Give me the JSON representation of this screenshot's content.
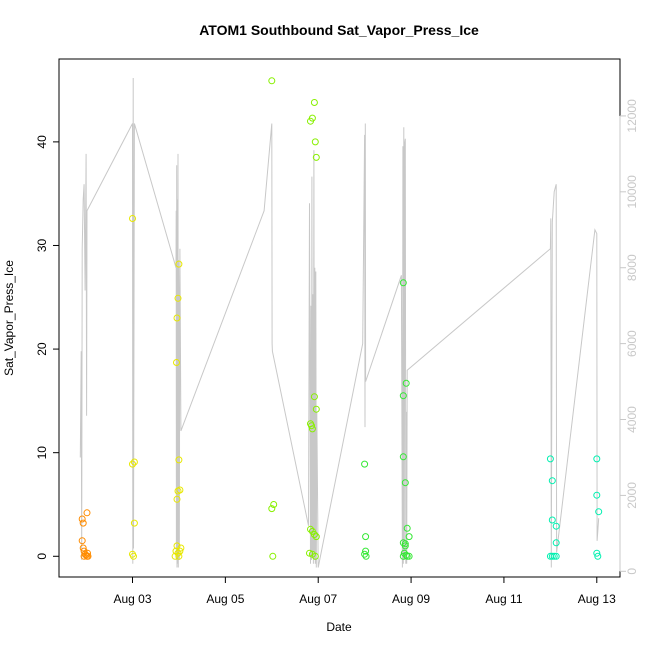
{
  "chart_data": {
    "type": "scatter",
    "title": "ATOM1 Southbound Sat_Vapor_Press_Ice",
    "xlabel": "Date",
    "ylabel": "Sat_Vapor_Press_Ice",
    "x_range": [
      "2016-08-01T10:00",
      "2016-08-13T12:00"
    ],
    "ylim": [
      -2,
      48
    ],
    "y2lim": [
      -150,
      13500
    ],
    "x_ticks": [
      {
        "date": "2016-08-03",
        "label": "Aug 03"
      },
      {
        "date": "2016-08-05",
        "label": "Aug 05"
      },
      {
        "date": "2016-08-07",
        "label": "Aug 07"
      },
      {
        "date": "2016-08-09",
        "label": "Aug 09"
      },
      {
        "date": "2016-08-11",
        "label": "Aug 11"
      },
      {
        "date": "2016-08-13",
        "label": "Aug 13"
      }
    ],
    "y_ticks": [
      0,
      10,
      20,
      30,
      40
    ],
    "y2_ticks": [
      0,
      2000,
      4000,
      6000,
      8000,
      10000,
      12000
    ],
    "line_color": "#c8c8c8",
    "series": [
      {
        "color": "#ff8c00",
        "points": [
          [
            "2016-08-01T22:00",
            3.6
          ],
          [
            "2016-08-01T22:30",
            3.2
          ],
          [
            "2016-08-01T22:00",
            1.5
          ],
          [
            "2016-08-01T22:30",
            0.8
          ],
          [
            "2016-08-01T23:00",
            0.5
          ],
          [
            "2016-08-01T23:30",
            0.2
          ],
          [
            "2016-08-02T00:00",
            0.1
          ],
          [
            "2016-08-02T00:30",
            0.0
          ],
          [
            "2016-08-01T23:00",
            0.0
          ],
          [
            "2016-08-02T00:45",
            0.3
          ],
          [
            "2016-08-02T01:00",
            0.0
          ],
          [
            "2016-08-02T00:30",
            4.2
          ]
        ]
      },
      {
        "color": "#e8e800",
        "points": [
          [
            "2016-08-03T00:00",
            32.6
          ],
          [
            "2016-08-03T00:00",
            8.9
          ],
          [
            "2016-08-03T01:00",
            9.1
          ],
          [
            "2016-08-03T01:00",
            3.2
          ],
          [
            "2016-08-03T00:00",
            0.2
          ],
          [
            "2016-08-03T00:30",
            0.0
          ],
          [
            "2016-08-03T23:00",
            5.5
          ],
          [
            "2016-08-03T22:30",
            0.5
          ],
          [
            "2016-08-03T22:00",
            0.0
          ],
          [
            "2016-08-03T23:30",
            0.3
          ],
          [
            "2016-08-04T00:00",
            0.0
          ],
          [
            "2016-08-04T00:30",
            0.5
          ],
          [
            "2016-08-04T01:00",
            0.8
          ],
          [
            "2016-08-03T23:00",
            1.0
          ],
          [
            "2016-08-04T00:00",
            28.2
          ],
          [
            "2016-08-03T23:30",
            24.9
          ],
          [
            "2016-08-03T23:00",
            23.0
          ],
          [
            "2016-08-03T22:45",
            18.7
          ],
          [
            "2016-08-04T00:00",
            9.3
          ],
          [
            "2016-08-03T23:30",
            6.3
          ],
          [
            "2016-08-04T00:30",
            6.4
          ]
        ]
      },
      {
        "color": "#88f000",
        "points": [
          [
            "2016-08-06T00:00",
            45.9
          ],
          [
            "2016-08-06T00:00",
            4.6
          ],
          [
            "2016-08-06T01:00",
            5.0
          ],
          [
            "2016-08-06T00:30",
            0.0
          ],
          [
            "2016-08-06T20:00",
            42.0
          ],
          [
            "2016-08-06T21:00",
            42.3
          ],
          [
            "2016-08-06T22:00",
            43.8
          ],
          [
            "2016-08-06T22:30",
            40.0
          ],
          [
            "2016-08-06T23:00",
            38.5
          ],
          [
            "2016-08-06T22:00",
            15.4
          ],
          [
            "2016-08-06T23:00",
            14.2
          ],
          [
            "2016-08-06T20:00",
            12.8
          ],
          [
            "2016-08-06T21:00",
            12.3
          ],
          [
            "2016-08-06T20:30",
            12.6
          ],
          [
            "2016-08-06T20:00",
            2.6
          ],
          [
            "2016-08-06T21:00",
            2.4
          ],
          [
            "2016-08-06T22:00",
            2.1
          ],
          [
            "2016-08-06T23:00",
            1.9
          ],
          [
            "2016-08-06T19:30",
            0.3
          ],
          [
            "2016-08-06T21:00",
            0.2
          ],
          [
            "2016-08-06T22:30",
            0.0
          ]
        ]
      },
      {
        "color": "#33e833",
        "points": [
          [
            "2016-08-08T00:00",
            8.9
          ],
          [
            "2016-08-08T00:30",
            1.9
          ],
          [
            "2016-08-08T00:30",
            0.5
          ],
          [
            "2016-08-08T00:00",
            0.2
          ],
          [
            "2016-08-08T00:45",
            0.0
          ],
          [
            "2016-08-08T20:00",
            26.4
          ],
          [
            "2016-08-08T20:00",
            15.5
          ],
          [
            "2016-08-08T21:30",
            16.7
          ],
          [
            "2016-08-08T20:00",
            9.6
          ],
          [
            "2016-08-08T21:00",
            7.1
          ],
          [
            "2016-08-08T22:00",
            2.7
          ],
          [
            "2016-08-08T23:00",
            1.9
          ],
          [
            "2016-08-08T20:00",
            1.3
          ],
          [
            "2016-08-08T21:00",
            1.0
          ],
          [
            "2016-08-08T20:30",
            0.3
          ],
          [
            "2016-08-08T21:30",
            0.1
          ],
          [
            "2016-08-08T22:00",
            0.0
          ],
          [
            "2016-08-08T23:00",
            0.0
          ],
          [
            "2016-08-08T20:00",
            0.0
          ],
          [
            "2016-08-08T21:00",
            1.2
          ]
        ]
      },
      {
        "color": "#00f0b0",
        "points": [
          [
            "2016-08-12T00:00",
            9.4
          ],
          [
            "2016-08-12T01:00",
            7.3
          ],
          [
            "2016-08-12T01:00",
            3.5
          ],
          [
            "2016-08-12T03:00",
            2.9
          ],
          [
            "2016-08-12T03:00",
            1.3
          ],
          [
            "2016-08-12T00:00",
            0.0
          ],
          [
            "2016-08-12T01:00",
            0.0
          ],
          [
            "2016-08-12T02:00",
            0.0
          ],
          [
            "2016-08-12T03:00",
            0.0
          ],
          [
            "2016-08-13T00:00",
            9.4
          ],
          [
            "2016-08-13T00:00",
            5.9
          ],
          [
            "2016-08-13T01:00",
            4.3
          ],
          [
            "2016-08-13T00:00",
            0.3
          ],
          [
            "2016-08-13T00:30",
            0.0
          ]
        ]
      }
    ],
    "line_points": [
      [
        "2016-08-01T21:00",
        3000
      ],
      [
        "2016-08-01T21:30",
        5800
      ],
      [
        "2016-08-01T21:45",
        300
      ],
      [
        "2016-08-01T22:00",
        8500
      ],
      [
        "2016-08-01T22:30",
        9800
      ],
      [
        "2016-08-01T23:00",
        10200
      ],
      [
        "2016-08-01T23:30",
        7400
      ],
      [
        "2016-08-02T00:00",
        11000
      ],
      [
        "2016-08-02T00:15",
        4100
      ],
      [
        "2016-08-02T00:30",
        9500
      ],
      [
        "2016-08-03T00:00",
        11800
      ],
      [
        "2016-08-03T00:10",
        200
      ],
      [
        "2016-08-03T00:20",
        13000
      ],
      [
        "2016-08-03T00:30",
        600
      ],
      [
        "2016-08-03T01:00",
        11800
      ],
      [
        "2016-08-03T22:30",
        8000
      ],
      [
        "2016-08-03T22:35",
        9500
      ],
      [
        "2016-08-03T22:40",
        300
      ],
      [
        "2016-08-03T22:50",
        10700
      ],
      [
        "2016-08-03T23:00",
        100
      ],
      [
        "2016-08-03T23:10",
        9800
      ],
      [
        "2016-08-03T23:20",
        200
      ],
      [
        "2016-08-03T23:30",
        11000
      ],
      [
        "2016-08-03T23:40",
        100
      ],
      [
        "2016-08-03T23:50",
        8200
      ],
      [
        "2016-08-04T00:00",
        7200
      ],
      [
        "2016-08-04T00:05",
        7200
      ],
      [
        "2016-08-04T00:10",
        300
      ],
      [
        "2016-08-04T00:30",
        8500
      ],
      [
        "2016-08-04T01:00",
        3700
      ],
      [
        "2016-08-05T20:00",
        9500
      ],
      [
        "2016-08-06T00:00",
        11800
      ],
      [
        "2016-08-06T00:10",
        6000
      ],
      [
        "2016-08-06T00:20",
        5800
      ],
      [
        "2016-08-06T19:00",
        1200
      ],
      [
        "2016-08-06T19:30",
        9700
      ],
      [
        "2016-08-06T20:00",
        200
      ],
      [
        "2016-08-06T20:15",
        7000
      ],
      [
        "2016-08-06T20:30",
        300
      ],
      [
        "2016-08-06T20:45",
        10400
      ],
      [
        "2016-08-06T21:00",
        400
      ],
      [
        "2016-08-06T21:15",
        7300
      ],
      [
        "2016-08-06T21:30",
        200
      ],
      [
        "2016-08-06T21:45",
        11100
      ],
      [
        "2016-08-06T22:00",
        300
      ],
      [
        "2016-08-06T22:15",
        8000
      ],
      [
        "2016-08-06T22:30",
        200
      ],
      [
        "2016-08-06T22:45",
        7900
      ],
      [
        "2016-08-06T23:00",
        100
      ],
      [
        "2016-08-06T23:15",
        4200
      ],
      [
        "2016-08-07T00:00",
        100
      ],
      [
        "2016-08-07T23:00",
        6000
      ],
      [
        "2016-08-08T00:00",
        11500
      ],
      [
        "2016-08-08T00:10",
        3800
      ],
      [
        "2016-08-08T00:20",
        11800
      ],
      [
        "2016-08-08T00:30",
        5000
      ],
      [
        "2016-08-08T19:00",
        7800
      ],
      [
        "2016-08-08T19:30",
        100
      ],
      [
        "2016-08-08T19:45",
        11200
      ],
      [
        "2016-08-08T20:00",
        200
      ],
      [
        "2016-08-08T20:15",
        11700
      ],
      [
        "2016-08-08T20:30",
        300
      ],
      [
        "2016-08-08T20:45",
        11300
      ],
      [
        "2016-08-08T21:00",
        11400
      ],
      [
        "2016-08-08T21:15",
        200
      ],
      [
        "2016-08-08T21:30",
        4200
      ],
      [
        "2016-08-08T21:45",
        200
      ],
      [
        "2016-08-08T22:00",
        5300
      ],
      [
        "2016-08-12T00:00",
        8500
      ],
      [
        "2016-08-12T00:15",
        9300
      ],
      [
        "2016-08-12T00:30",
        100
      ],
      [
        "2016-08-12T01:00",
        9200
      ],
      [
        "2016-08-12T02:00",
        10000
      ],
      [
        "2016-08-12T02:30",
        10100
      ],
      [
        "2016-08-12T03:00",
        10200
      ],
      [
        "2016-08-12T03:15",
        500
      ],
      [
        "2016-08-12T23:00",
        9000
      ],
      [
        "2016-08-13T00:00",
        8900
      ],
      [
        "2016-08-13T00:10",
        800
      ],
      [
        "2016-08-13T01:00",
        1400
      ]
    ]
  }
}
